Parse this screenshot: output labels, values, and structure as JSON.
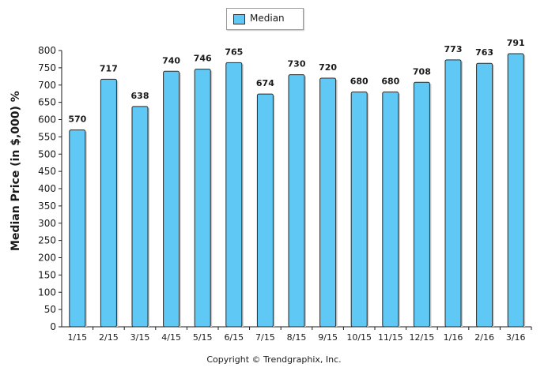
{
  "chart_data": {
    "type": "bar",
    "categories": [
      "1/15",
      "2/15",
      "3/15",
      "4/15",
      "5/15",
      "6/15",
      "7/15",
      "8/15",
      "9/15",
      "10/15",
      "11/15",
      "12/15",
      "1/16",
      "2/16",
      "3/16"
    ],
    "series": [
      {
        "name": "Median",
        "values": [
          570,
          717,
          638,
          740,
          746,
          765,
          674,
          730,
          720,
          680,
          680,
          708,
          773,
          763,
          791
        ]
      }
    ],
    "ylabel": "Median Price (in $,000) %",
    "ylim": [
      0,
      800
    ],
    "yticks": [
      0,
      50,
      100,
      150,
      200,
      250,
      300,
      350,
      400,
      450,
      500,
      550,
      600,
      650,
      700,
      750,
      800
    ],
    "grid": false,
    "legend": "top-center",
    "bar_color": "#5fc8f5",
    "bar_border_color": "#2a2a2a"
  },
  "legend": {
    "label": "Median"
  },
  "footer": {
    "copyright": "Copyright © Trendgraphix, Inc."
  }
}
